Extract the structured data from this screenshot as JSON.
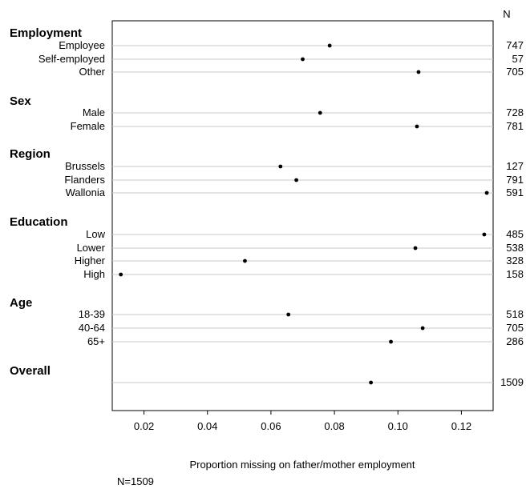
{
  "chart_data": {
    "type": "scatter",
    "xlabel": "Proportion missing on father/mother employment",
    "note": "N=1509",
    "n_header": "N",
    "xlim": [
      0.01,
      0.13
    ],
    "xticks": [
      0.02,
      0.04,
      0.06,
      0.08,
      0.1,
      0.12
    ],
    "xtick_labels": [
      "0.02",
      "0.04",
      "0.06",
      "0.08",
      "0.10",
      "0.12"
    ],
    "groups": [
      {
        "name": "Employment",
        "rows": [
          {
            "label": "Employee",
            "value": 0.0785,
            "n": "747"
          },
          {
            "label": "Self-employed",
            "value": 0.07,
            "n": "57"
          },
          {
            "label": "Other",
            "value": 0.1065,
            "n": "705"
          }
        ]
      },
      {
        "name": "Sex",
        "rows": [
          {
            "label": "Male",
            "value": 0.0755,
            "n": "728"
          },
          {
            "label": "Female",
            "value": 0.106,
            "n": "781"
          }
        ]
      },
      {
        "name": "Region",
        "rows": [
          {
            "label": "Brussels",
            "value": 0.063,
            "n": "127"
          },
          {
            "label": "Flanders",
            "value": 0.068,
            "n": "791"
          },
          {
            "label": "Wallonia",
            "value": 0.128,
            "n": "591"
          }
        ]
      },
      {
        "name": "Education",
        "rows": [
          {
            "label": "Low",
            "value": 0.1272,
            "n": "485"
          },
          {
            "label": "Lower",
            "value": 0.1055,
            "n": "538"
          },
          {
            "label": "Higher",
            "value": 0.0518,
            "n": "328"
          },
          {
            "label": "High",
            "value": 0.0127,
            "n": "158"
          }
        ]
      },
      {
        "name": "Age",
        "rows": [
          {
            "label": "18-39",
            "value": 0.0655,
            "n": "518"
          },
          {
            "label": "40-64",
            "value": 0.1078,
            "n": "705"
          },
          {
            "label": "65+",
            "value": 0.0978,
            "n": "286"
          }
        ]
      },
      {
        "name": "Overall",
        "rows": [
          {
            "label": "",
            "value": 0.0915,
            "n": "1509"
          }
        ]
      }
    ]
  }
}
